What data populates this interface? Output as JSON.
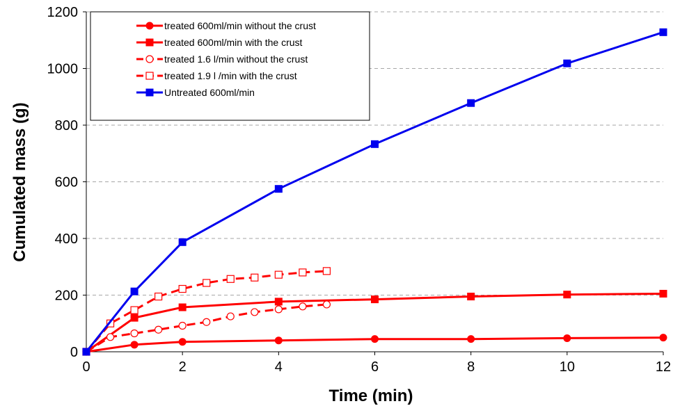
{
  "chart_data": {
    "type": "line",
    "xlabel": "Time (min)",
    "ylabel": "Cumulated mass (g)",
    "xlim": [
      0,
      12
    ],
    "ylim": [
      0,
      1200
    ],
    "xticks": [
      0,
      2,
      4,
      6,
      8,
      10,
      12
    ],
    "yticks": [
      0,
      200,
      400,
      600,
      800,
      1000,
      1200
    ],
    "grid": "horizontal dashed",
    "legend_position": "top-left",
    "series": [
      {
        "name": "treated 600ml/min without the crust",
        "color": "#ff0000",
        "marker": "filled-circle",
        "line": "solid",
        "x": [
          0,
          1,
          2,
          4,
          6,
          8,
          10,
          12
        ],
        "y": [
          0,
          25,
          35,
          40,
          45,
          45,
          48,
          50
        ]
      },
      {
        "name": "treated 600ml/min with the crust",
        "color": "#ff0000",
        "marker": "filled-square",
        "line": "solid",
        "x": [
          0,
          1,
          2,
          4,
          6,
          8,
          10,
          12
        ],
        "y": [
          0,
          120,
          157,
          177,
          185,
          195,
          202,
          205
        ]
      },
      {
        "name": "treated 1.6 l/min without the crust",
        "color": "#ff0000",
        "marker": "open-circle",
        "line": "dashed",
        "x": [
          0,
          0.5,
          1,
          1.5,
          2,
          2.5,
          3,
          3.5,
          4,
          4.5,
          5
        ],
        "y": [
          0,
          52,
          65,
          78,
          92,
          105,
          125,
          140,
          150,
          160,
          167
        ]
      },
      {
        "name": "treated 1.9 l /min with the crust",
        "color": "#ff0000",
        "marker": "open-square",
        "line": "dashed",
        "x": [
          0,
          0.5,
          1,
          1.5,
          2,
          2.5,
          3,
          3.5,
          4,
          4.5,
          5
        ],
        "y": [
          0,
          100,
          147,
          195,
          222,
          243,
          257,
          262,
          272,
          280,
          285
        ]
      },
      {
        "name": "Untreated 600ml/min",
        "color": "#0000ee",
        "marker": "filled-square",
        "line": "solid",
        "x": [
          0,
          1,
          2,
          4,
          6,
          8,
          10,
          12
        ],
        "y": [
          0,
          213,
          387,
          575,
          733,
          878,
          1018,
          1128
        ]
      }
    ]
  }
}
